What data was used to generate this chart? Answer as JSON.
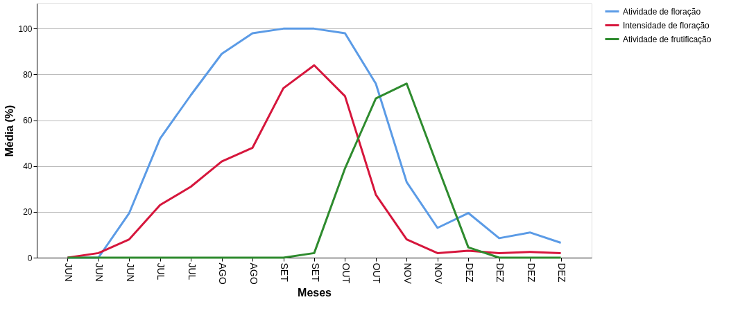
{
  "chart_data": {
    "type": "line",
    "xlabel": "Meses",
    "ylabel": "Média (%)",
    "categories": [
      "JUN",
      "JUN",
      "JUN",
      "JUL",
      "JUL",
      "AGO",
      "AGO",
      "SET",
      "SET",
      "OUT",
      "OUT",
      "NOV",
      "NOV",
      "DEZ",
      "DEZ",
      "DEZ",
      "DEZ"
    ],
    "series": [
      {
        "name": "Atividade de floração",
        "color": "#5b9be6",
        "values": [
          0,
          0,
          19.5,
          52,
          71,
          89,
          98,
          100,
          100,
          98,
          76,
          33,
          13,
          19.5,
          8.5,
          11,
          6.5
        ]
      },
      {
        "name": "Intensidade de floração",
        "color": "#d6163c",
        "values": [
          0,
          2,
          8,
          23,
          31,
          42,
          48,
          74,
          84,
          70.5,
          27.5,
          8,
          2,
          3,
          2,
          2.5,
          2
        ]
      },
      {
        "name": "Atividade de frutificação",
        "color": "#2e8b2e",
        "values": [
          0,
          0,
          0,
          0,
          0,
          0,
          0,
          0,
          2,
          39,
          69.5,
          76,
          40,
          4.5,
          0,
          0,
          0
        ]
      }
    ],
    "ylim": [
      0,
      111
    ],
    "yticks": [
      0,
      20,
      40,
      60,
      80,
      100
    ],
    "grid": "y",
    "legend": "top right"
  }
}
